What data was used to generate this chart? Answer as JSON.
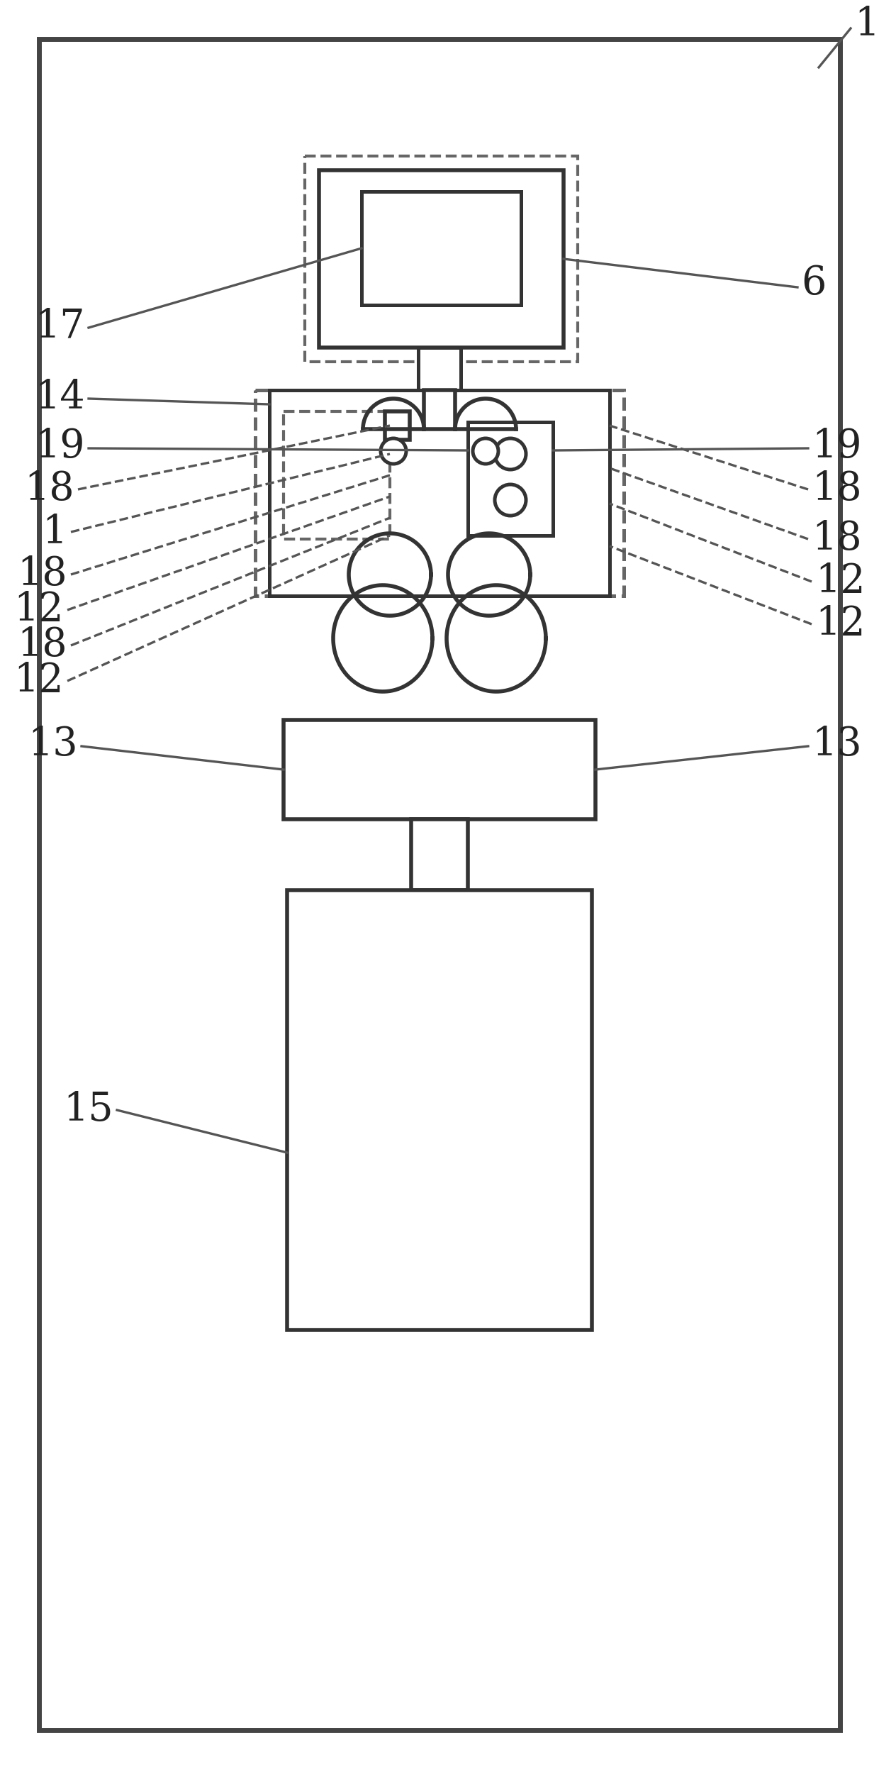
{
  "bg_color": "#ffffff",
  "line_color": "#333333",
  "dashed_color": "#666666",
  "label_color": "#222222",
  "fig_width": 6.2,
  "fig_height": 12.47,
  "dpi": 200
}
